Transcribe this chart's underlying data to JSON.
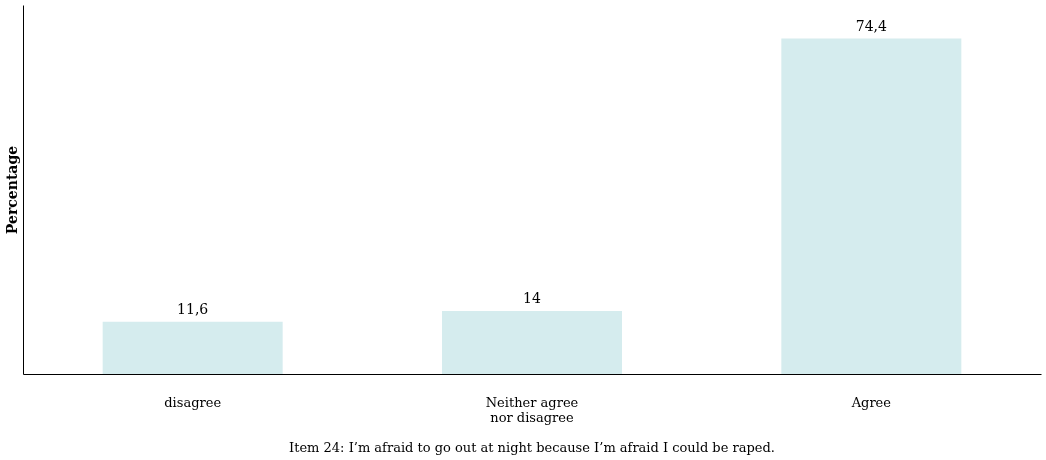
{
  "chart_data": {
    "type": "bar",
    "title": "Item 24: I’m afraid to go out at night because I’m afraid I could be raped.",
    "ylabel": "Percentage",
    "categories": [
      "disagree",
      "Neither agree nor disagree",
      "Agree"
    ],
    "values": [
      11.6,
      14,
      74.4
    ],
    "value_labels": [
      "11,6",
      "14",
      "74,4"
    ],
    "color": "#d5ecee",
    "grid": false
  }
}
